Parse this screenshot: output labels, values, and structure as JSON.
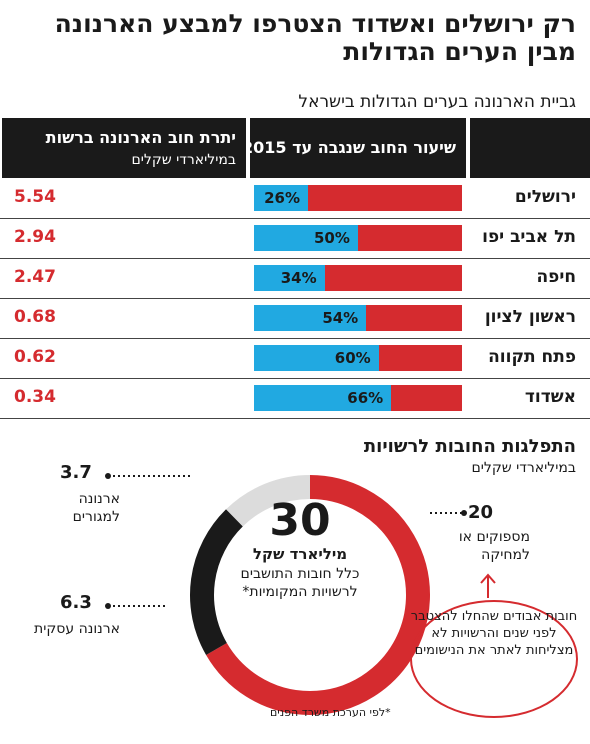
{
  "title": {
    "line1": "רק ירושלים ואשדוד הצטרפו למבצע הארנונה",
    "line2": "מבין הערים הגדולות"
  },
  "subtitle": "גביית הארנונה בערים הגדולות בישראל",
  "table": {
    "header_pct": "שיעור החוב שנגבה עד 2015",
    "header_debt": "יתרת חוב הארנונה ברשות",
    "header_debt_unit": "במיליארדי שקלים"
  },
  "colors": {
    "collected": "#21a9e1",
    "remaining": "#d52b2f",
    "dark": "#1a1a1a",
    "light": "#dcdcdc"
  },
  "chart_data": [
    {
      "type": "bar",
      "categories": [
        "ירושלים",
        "תל אביב יפו",
        "חיפה",
        "ראשון לציון",
        "פתח תקווה",
        "אשדוד"
      ],
      "series": [
        {
          "name": "שיעור החוב שנגבה עד 2015",
          "values": [
            26,
            50,
            34,
            54,
            60,
            66
          ]
        },
        {
          "name": "יתרת חוב הארנונה ברשות",
          "values": [
            5.54,
            2.94,
            2.47,
            0.68,
            0.62,
            0.34
          ]
        }
      ],
      "pct_labels": [
        "26%",
        "50%",
        "34%",
        "54%",
        "60%",
        "66%"
      ],
      "debt_labels": [
        "5.54",
        "2.94",
        "2.47",
        "0.68",
        "0.62",
        "0.34"
      ]
    },
    {
      "type": "pie",
      "title": "התפלגות החובות לרשויות",
      "subtitle": "במיליארדי שקלים",
      "total": "30",
      "total_unit": "מיליארד שקל",
      "total_desc": "כלל חובות התושבים לרשויות המקומיות*",
      "slices": [
        {
          "label": "מספוקים או למחיקה",
          "value": 20,
          "value_label": "20"
        },
        {
          "label": "ארנונה עסקית",
          "value": 6.3,
          "value_label": "6.3"
        },
        {
          "label": "ארנונה למגורים",
          "value": 3.7,
          "value_label": "3.7"
        }
      ],
      "note": "חובות אבודים שהחלו להצטבר לפני שנים והרשויות לא מצליחות לאתר את הנישומים"
    }
  ],
  "footnote": "*לפי הערכת משרד הפנים"
}
